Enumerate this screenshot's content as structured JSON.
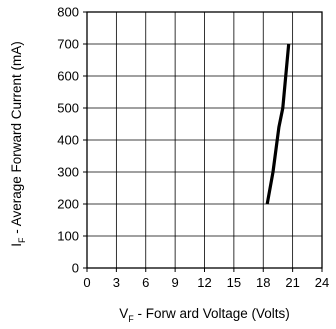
{
  "chart_data": {
    "type": "line",
    "title": "",
    "xlabel_main": "V",
    "xlabel_sub": "F",
    "xlabel_rest": " - Forw ard Voltage (Volts)",
    "ylabel_main": "I",
    "ylabel_sub": "F",
    "ylabel_rest": " - Average Forward Current (mA)",
    "xlim": [
      0,
      24
    ],
    "ylim": [
      0,
      800
    ],
    "x_ticks": [
      0,
      3,
      6,
      9,
      12,
      15,
      18,
      21,
      24
    ],
    "y_ticks": [
      0,
      100,
      200,
      300,
      400,
      500,
      600,
      700,
      800
    ],
    "grid": true,
    "series": [
      {
        "color": "#000000",
        "x": [
          18.4,
          19.0,
          19.6,
          20.0,
          20.6
        ],
        "y": [
          200,
          300,
          440,
          500,
          700
        ]
      }
    ]
  }
}
